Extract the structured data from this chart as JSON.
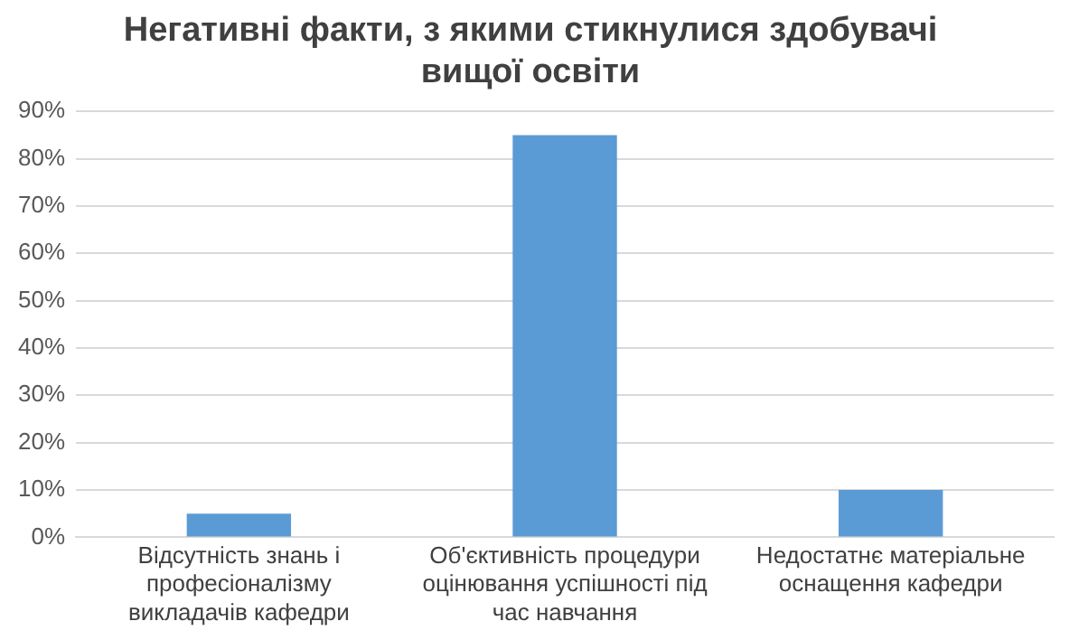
{
  "chart_data": {
    "type": "bar",
    "title": "Негативні факти, з якими стикнулися здобувачі вищої освіти",
    "categories": [
      "Відсутність знань і професіоналізму викладачів кафедри",
      "Об'єктивність процедури оцінювання успішності під час навчання",
      "Недостатнє матеріальне оснащення кафедри"
    ],
    "values": [
      5,
      85,
      10
    ],
    "color": "#5b9bd5",
    "ylim": [
      0,
      90
    ],
    "yticks": [
      {
        "value": 0,
        "label": "0%"
      },
      {
        "value": 10,
        "label": "10%"
      },
      {
        "value": 20,
        "label": "20%"
      },
      {
        "value": 30,
        "label": "30%"
      },
      {
        "value": 40,
        "label": "40%"
      },
      {
        "value": 50,
        "label": "50%"
      },
      {
        "value": 60,
        "label": "60%"
      },
      {
        "value": 70,
        "label": "70%"
      },
      {
        "value": 80,
        "label": "80%"
      },
      {
        "value": 90,
        "label": "90%"
      }
    ],
    "grid": "y",
    "legend": false
  }
}
